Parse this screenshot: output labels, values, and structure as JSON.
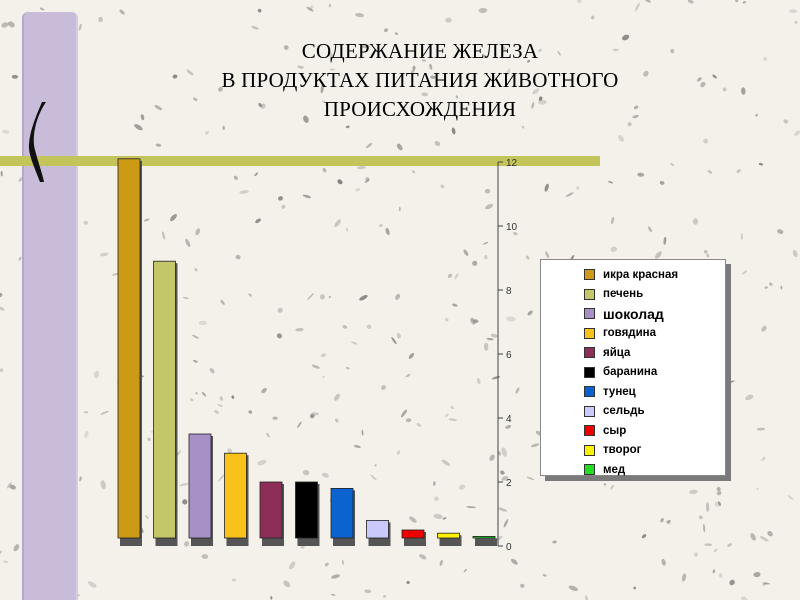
{
  "slide": {
    "title_lines": [
      "СОДЕРЖАНИЕ ЖЕЛЕЗА",
      "В ПРОДУКТАХ ПИТАНИЯ ЖИВОТНОГО",
      "ПРОИСХОЖДЕНИЯ"
    ]
  },
  "chart_data": {
    "type": "bar",
    "title": "СОДЕРЖАНИЕ ЖЕЛЕЗА В ПРОДУКТАХ ПИТАНИЯ ЖИВОТНОГО ПРОИСХОЖДЕНИЯ",
    "categories": [
      "икра красная",
      "печень",
      "шоколад",
      "говядина",
      "яйца",
      "баранина",
      "тунец",
      "сельдь",
      "сыр",
      "творог",
      "мед"
    ],
    "values": [
      12.1,
      8.9,
      3.5,
      2.9,
      2.0,
      2.0,
      1.8,
      0.8,
      0.5,
      0.4,
      0.3
    ],
    "colors": [
      "#cc9a14",
      "#c3c669",
      "#a690c6",
      "#f7c31b",
      "#8c2e57",
      "#000000",
      "#0b63d0",
      "#c9c9fb",
      "#ee0000",
      "#fff200",
      "#22dd22"
    ],
    "ylim": [
      0,
      12
    ],
    "yticks": [
      "0",
      "2",
      "4",
      "6",
      "8",
      "10",
      "12"
    ],
    "y_axis_position": "right",
    "legend": "right"
  }
}
